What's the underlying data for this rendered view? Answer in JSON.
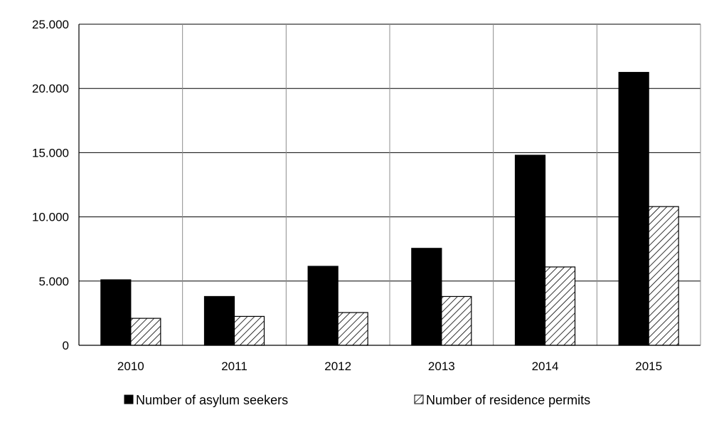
{
  "chart_data": {
    "type": "bar",
    "categories": [
      "2010",
      "2011",
      "2012",
      "2013",
      "2014",
      "2015"
    ],
    "series": [
      {
        "name": "Number of asylum seekers",
        "values": [
          5100,
          3800,
          6150,
          7550,
          14800,
          21250
        ],
        "fill": "solid",
        "color": "#000000"
      },
      {
        "name": "Number of residence permits",
        "values": [
          2100,
          2250,
          2550,
          3800,
          6100,
          10800
        ],
        "fill": "hatched",
        "color": "#000000"
      }
    ],
    "y_ticks": [
      {
        "value": 0,
        "label": "0"
      },
      {
        "value": 5000,
        "label": "5.000"
      },
      {
        "value": 10000,
        "label": "10.000"
      },
      {
        "value": 15000,
        "label": "15.000"
      },
      {
        "value": 20000,
        "label": "20.000"
      },
      {
        "value": 25000,
        "label": "25.000"
      }
    ],
    "ylim": [
      0,
      25000
    ],
    "title": "",
    "xlabel": "",
    "ylabel": "",
    "grid": "horizontal and vertical",
    "legend": "bottom"
  }
}
